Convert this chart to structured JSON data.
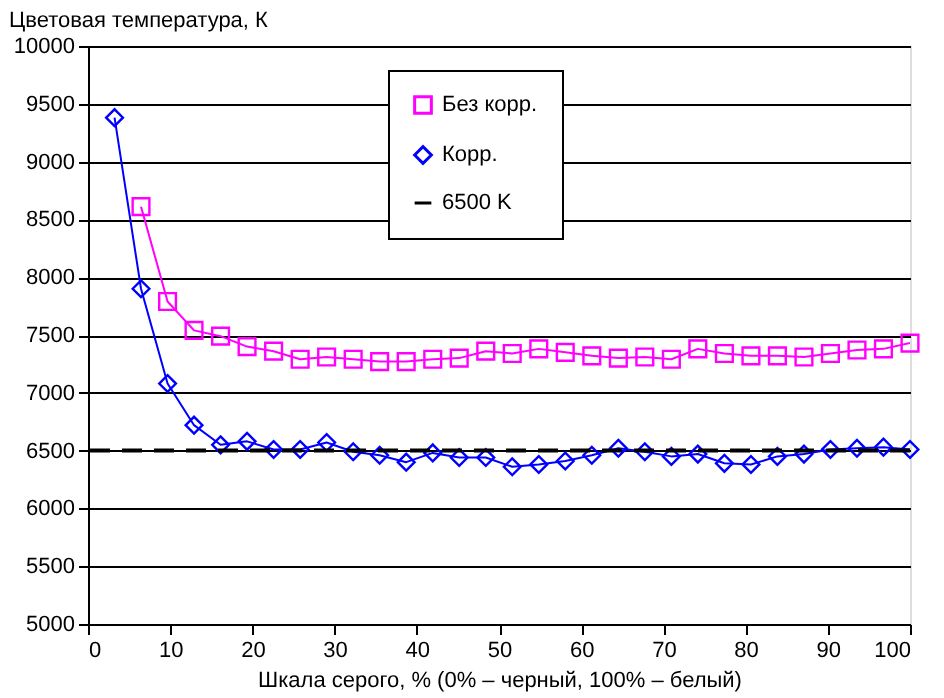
{
  "chart_data": {
    "type": "line",
    "ylabel": "Цветовая температура, К",
    "xlabel": "Шкала серого, % (0% – черный, 100% – белый)",
    "x": [
      3.23,
      6.45,
      9.68,
      12.9,
      16.13,
      19.35,
      22.58,
      25.81,
      29.03,
      32.26,
      35.48,
      38.71,
      41.94,
      45.16,
      48.39,
      51.61,
      54.84,
      58.06,
      61.29,
      64.52,
      67.74,
      70.97,
      74.19,
      77.42,
      80.65,
      83.87,
      87.1,
      90.32,
      93.55,
      96.77,
      100
    ],
    "series": [
      {
        "name": "Без корр.",
        "color": "#ff00ff",
        "marker": "square",
        "values": [
          null,
          8610,
          7790,
          7540,
          7490,
          7400,
          7360,
          7290,
          7310,
          7290,
          7270,
          7270,
          7290,
          7300,
          7360,
          7340,
          7380,
          7350,
          7320,
          7300,
          7310,
          7290,
          7380,
          7340,
          7320,
          7320,
          7310,
          7340,
          7370,
          7380,
          7430
        ]
      },
      {
        "name": "Корр.",
        "color": "#0000ff",
        "marker": "diamond",
        "values": [
          9380,
          7900,
          7080,
          6720,
          6550,
          6580,
          6510,
          6510,
          6570,
          6490,
          6460,
          6400,
          6480,
          6440,
          6440,
          6360,
          6380,
          6410,
          6460,
          6520,
          6490,
          6450,
          6470,
          6390,
          6380,
          6450,
          6470,
          6510,
          6520,
          6530,
          6510
        ]
      }
    ],
    "ref_lines": [
      {
        "axis": "y",
        "value": 6500,
        "label": "6500 K",
        "color": "#000000",
        "line_style": "dashed"
      }
    ],
    "xlim": [
      0,
      100
    ],
    "xticks": [
      0,
      10,
      20,
      30,
      40,
      50,
      60,
      70,
      80,
      90,
      100
    ],
    "ylim": [
      5000,
      10000
    ],
    "yticks": [
      5000,
      5500,
      6000,
      6500,
      7000,
      7500,
      8000,
      8500,
      9000,
      9500,
      10000
    ],
    "grid": "y",
    "legend": "top right",
    "line_style": "solid"
  }
}
